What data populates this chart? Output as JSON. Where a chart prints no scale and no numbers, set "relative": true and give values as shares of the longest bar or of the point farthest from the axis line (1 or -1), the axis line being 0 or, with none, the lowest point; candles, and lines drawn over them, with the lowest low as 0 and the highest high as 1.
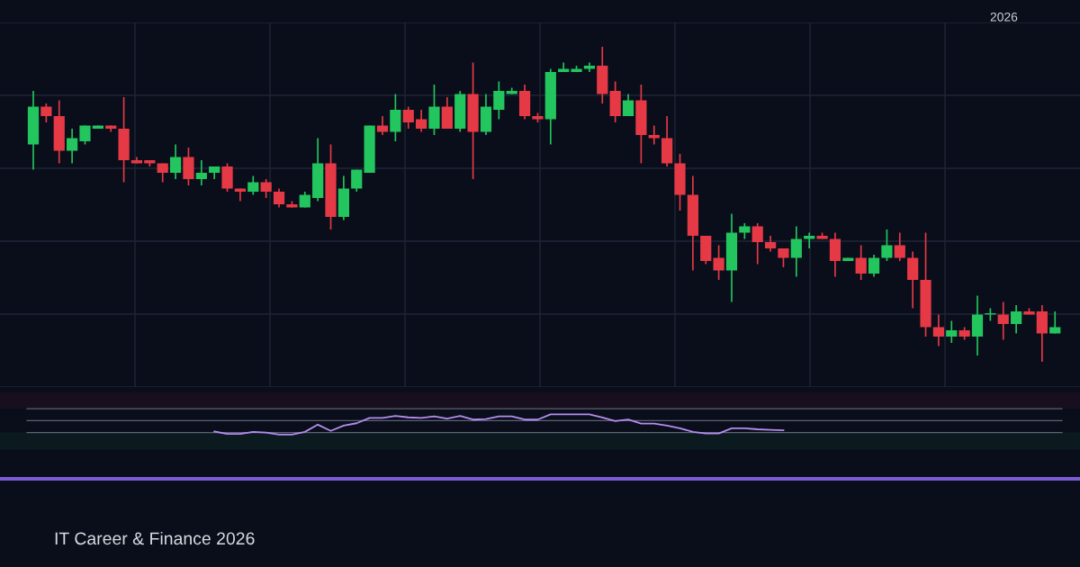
{
  "chart_data": [
    {
      "type": "candlestick",
      "relative": true,
      "grid": true,
      "categories": [
        null,
        null,
        null,
        null,
        null,
        null,
        null,
        null,
        null,
        null,
        null,
        null,
        null,
        null,
        null,
        null,
        null,
        null,
        null,
        null,
        null,
        null,
        null,
        null,
        null,
        null,
        null,
        null,
        null,
        null,
        null,
        null,
        null,
        null,
        null,
        null,
        null,
        null,
        null,
        null,
        null,
        null,
        null,
        null,
        null,
        null,
        null,
        null,
        null,
        null,
        null,
        null,
        null,
        null,
        null,
        null,
        null,
        null,
        null,
        null,
        null,
        null,
        null,
        null,
        null,
        null,
        null,
        null,
        null,
        null,
        null,
        null,
        null,
        null,
        null,
        null,
        null,
        null,
        null,
        null
      ],
      "ohlc": [
        [
          0.69,
          0.86,
          0.61,
          0.81
        ],
        [
          0.81,
          0.82,
          0.76,
          0.78
        ],
        [
          0.78,
          0.83,
          0.63,
          0.67
        ],
        [
          0.67,
          0.74,
          0.63,
          0.71
        ],
        [
          0.7,
          0.75,
          0.69,
          0.75
        ],
        [
          0.74,
          0.75,
          0.74,
          0.75
        ],
        [
          0.75,
          0.75,
          0.73,
          0.74
        ],
        [
          0.74,
          0.84,
          0.57,
          0.64
        ],
        [
          0.64,
          0.65,
          0.63,
          0.63
        ],
        [
          0.64,
          0.64,
          0.62,
          0.63
        ],
        [
          0.63,
          0.63,
          0.57,
          0.6
        ],
        [
          0.6,
          0.69,
          0.58,
          0.65
        ],
        [
          0.65,
          0.68,
          0.56,
          0.58
        ],
        [
          0.58,
          0.64,
          0.56,
          0.6
        ],
        [
          0.6,
          0.62,
          0.58,
          0.62
        ],
        [
          0.62,
          0.63,
          0.54,
          0.55
        ],
        [
          0.55,
          0.55,
          0.51,
          0.54
        ],
        [
          0.54,
          0.59,
          0.53,
          0.57
        ],
        [
          0.57,
          0.58,
          0.52,
          0.54
        ],
        [
          0.54,
          0.55,
          0.49,
          0.5
        ],
        [
          0.5,
          0.51,
          0.49,
          0.49
        ],
        [
          0.49,
          0.54,
          0.49,
          0.53
        ],
        [
          0.52,
          0.71,
          0.51,
          0.63
        ],
        [
          0.63,
          0.69,
          0.42,
          0.46
        ],
        [
          0.46,
          0.59,
          0.45,
          0.55
        ],
        [
          0.55,
          0.61,
          0.54,
          0.61
        ],
        [
          0.6,
          0.75,
          0.6,
          0.75
        ],
        [
          0.75,
          0.78,
          0.72,
          0.73
        ],
        [
          0.73,
          0.85,
          0.7,
          0.8
        ],
        [
          0.8,
          0.81,
          0.74,
          0.76
        ],
        [
          0.77,
          0.8,
          0.73,
          0.74
        ],
        [
          0.74,
          0.88,
          0.72,
          0.81
        ],
        [
          0.81,
          0.84,
          0.74,
          0.74
        ],
        [
          0.74,
          0.86,
          0.73,
          0.85
        ],
        [
          0.85,
          0.95,
          0.58,
          0.73
        ],
        [
          0.73,
          0.85,
          0.72,
          0.81
        ],
        [
          0.8,
          0.89,
          0.77,
          0.86
        ],
        [
          0.85,
          0.87,
          0.85,
          0.86
        ],
        [
          0.86,
          0.88,
          0.77,
          0.78
        ],
        [
          0.78,
          0.79,
          0.76,
          0.77
        ],
        [
          0.77,
          0.93,
          0.69,
          0.92
        ],
        [
          0.92,
          0.95,
          0.92,
          0.93
        ],
        [
          0.92,
          0.94,
          0.92,
          0.93
        ],
        [
          0.93,
          0.95,
          0.92,
          0.94
        ],
        [
          0.94,
          1.0,
          0.82,
          0.85
        ],
        [
          0.86,
          0.89,
          0.76,
          0.78
        ],
        [
          0.78,
          0.85,
          0.78,
          0.83
        ],
        [
          0.83,
          0.88,
          0.63,
          0.72
        ],
        [
          0.72,
          0.75,
          0.69,
          0.71
        ],
        [
          0.71,
          0.78,
          0.62,
          0.63
        ],
        [
          0.63,
          0.66,
          0.48,
          0.53
        ],
        [
          0.53,
          0.59,
          0.29,
          0.4
        ],
        [
          0.4,
          0.4,
          0.31,
          0.32
        ],
        [
          0.33,
          0.37,
          0.26,
          0.29
        ],
        [
          0.29,
          0.47,
          0.19,
          0.41
        ],
        [
          0.41,
          0.44,
          0.39,
          0.43
        ],
        [
          0.43,
          0.44,
          0.31,
          0.38
        ],
        [
          0.38,
          0.4,
          0.35,
          0.36
        ],
        [
          0.36,
          0.36,
          0.3,
          0.33
        ],
        [
          0.33,
          0.43,
          0.27,
          0.39
        ],
        [
          0.39,
          0.41,
          0.36,
          0.4
        ],
        [
          0.4,
          0.41,
          0.39,
          0.39
        ],
        [
          0.39,
          0.41,
          0.27,
          0.32
        ],
        [
          0.32,
          0.33,
          0.32,
          0.33
        ],
        [
          0.33,
          0.37,
          0.26,
          0.28
        ],
        [
          0.28,
          0.34,
          0.27,
          0.33
        ],
        [
          0.33,
          0.42,
          0.32,
          0.37
        ],
        [
          0.37,
          0.41,
          0.32,
          0.33
        ],
        [
          0.33,
          0.35,
          0.17,
          0.26
        ],
        [
          0.26,
          0.41,
          0.08,
          0.11
        ],
        [
          0.11,
          0.15,
          0.05,
          0.08
        ],
        [
          0.08,
          0.13,
          0.06,
          0.1
        ],
        [
          0.1,
          0.11,
          0.07,
          0.08
        ],
        [
          0.08,
          0.21,
          0.02,
          0.15
        ],
        [
          0.15,
          0.17,
          0.13,
          0.15
        ],
        [
          0.15,
          0.19,
          0.07,
          0.12
        ],
        [
          0.12,
          0.18,
          0.09,
          0.16
        ],
        [
          0.16,
          0.17,
          0.15,
          0.15
        ],
        [
          0.16,
          0.18,
          0.0,
          0.09
        ],
        [
          0.09,
          0.16,
          0.09,
          0.11
        ]
      ],
      "colors": [
        "#22c55e",
        "#e63946",
        "#e63946",
        "#22c55e",
        "#22c55e",
        "#22c55e",
        "#e63946",
        "#e63946",
        "#e63946",
        "#e63946",
        "#e63946",
        "#22c55e",
        "#e63946",
        "#22c55e",
        "#22c55e",
        "#e63946",
        "#e63946",
        "#22c55e",
        "#e63946",
        "#e63946",
        "#e63946",
        "#22c55e",
        "#22c55e",
        "#e63946",
        "#22c55e",
        "#22c55e",
        "#22c55e",
        "#e63946",
        "#22c55e",
        "#e63946",
        "#e63946",
        "#22c55e",
        "#e63946",
        "#22c55e",
        "#e63946",
        "#22c55e",
        "#22c55e",
        "#22c55e",
        "#e63946",
        "#e63946",
        "#22c55e",
        "#22c55e",
        "#22c55e",
        "#22c55e",
        "#e63946",
        "#e63946",
        "#22c55e",
        "#e63946",
        "#e63946",
        "#e63946",
        "#e63946",
        "#e63946",
        "#e63946",
        "#e63946",
        "#22c55e",
        "#22c55e",
        "#e63946",
        "#e63946",
        "#e63946",
        "#22c55e",
        "#22c55e",
        "#e63946",
        "#e63946",
        "#22c55e",
        "#e63946",
        "#22c55e",
        "#22c55e",
        "#e63946",
        "#e63946",
        "#e63946",
        "#e63946",
        "#22c55e",
        "#e63946",
        "#22c55e",
        "#22c55e",
        "#e63946",
        "#22c55e",
        "#e63946",
        "#e63946",
        "#22c55e"
      ],
      "annotations": [
        "2026",
        "IT Career & Finance 2026"
      ]
    },
    {
      "type": "line",
      "relative": true,
      "categories": [
        null,
        null,
        null,
        null,
        null,
        null,
        null,
        null,
        null,
        null,
        null,
        null,
        null,
        null,
        null,
        null,
        null,
        null,
        null,
        null,
        null,
        null,
        null,
        null,
        null,
        null,
        null,
        null,
        null,
        null,
        null,
        null,
        null,
        null,
        null,
        null,
        null,
        null,
        null,
        null,
        null,
        null,
        null,
        null,
        null,
        null,
        null,
        null,
        null,
        null,
        null,
        null,
        null,
        null,
        null,
        null,
        null,
        null,
        null,
        null,
        null,
        null,
        null,
        null,
        null,
        null,
        null,
        null,
        null,
        null,
        null,
        null,
        null,
        null,
        null,
        null,
        null,
        null,
        null,
        null
      ],
      "series": [
        {
          "color": "#b48cf0",
          "values": [
            null,
            null,
            null,
            null,
            null,
            null,
            null,
            null,
            null,
            null,
            null,
            null,
            null,
            null,
            0.15,
            0.03,
            0.03,
            0.13,
            0.1,
            0,
            0,
            0.13,
            0.49,
            0.18,
            0.44,
            0.56,
            0.82,
            0.82,
            0.92,
            0.85,
            0.82,
            0.9,
            0.79,
            0.92,
            0.74,
            0.77,
            0.9,
            0.9,
            0.74,
            0.74,
            1,
            1,
            1,
            1,
            0.85,
            0.67,
            0.74,
            0.54,
            0.54,
            0.44,
            0.31,
            0.13,
            0.05,
            0.05,
            0.31,
            0.31,
            0.26,
            0.23,
            0.21,
            null,
            null,
            null,
            null,
            null,
            null,
            null,
            null,
            null,
            null,
            null,
            null,
            null,
            null,
            null,
            null,
            null,
            null,
            null,
            null,
            null
          ]
        }
      ],
      "ref_lines": [
        {
          "axis": "y",
          "value": 1.28,
          "color": "#5b6275"
        },
        {
          "axis": "y",
          "value": 0.69,
          "color": "#5b6275"
        },
        {
          "axis": "y",
          "value": 0.1,
          "color": "#5b6275"
        }
      ],
      "bands": [
        {
          "axis": "y",
          "from": 1.28,
          "to": 2.1,
          "color": "#170f1e"
        },
        {
          "axis": "y",
          "from": -0.75,
          "to": 0.1,
          "color": "#0a1a1e"
        }
      ]
    }
  ]
}
